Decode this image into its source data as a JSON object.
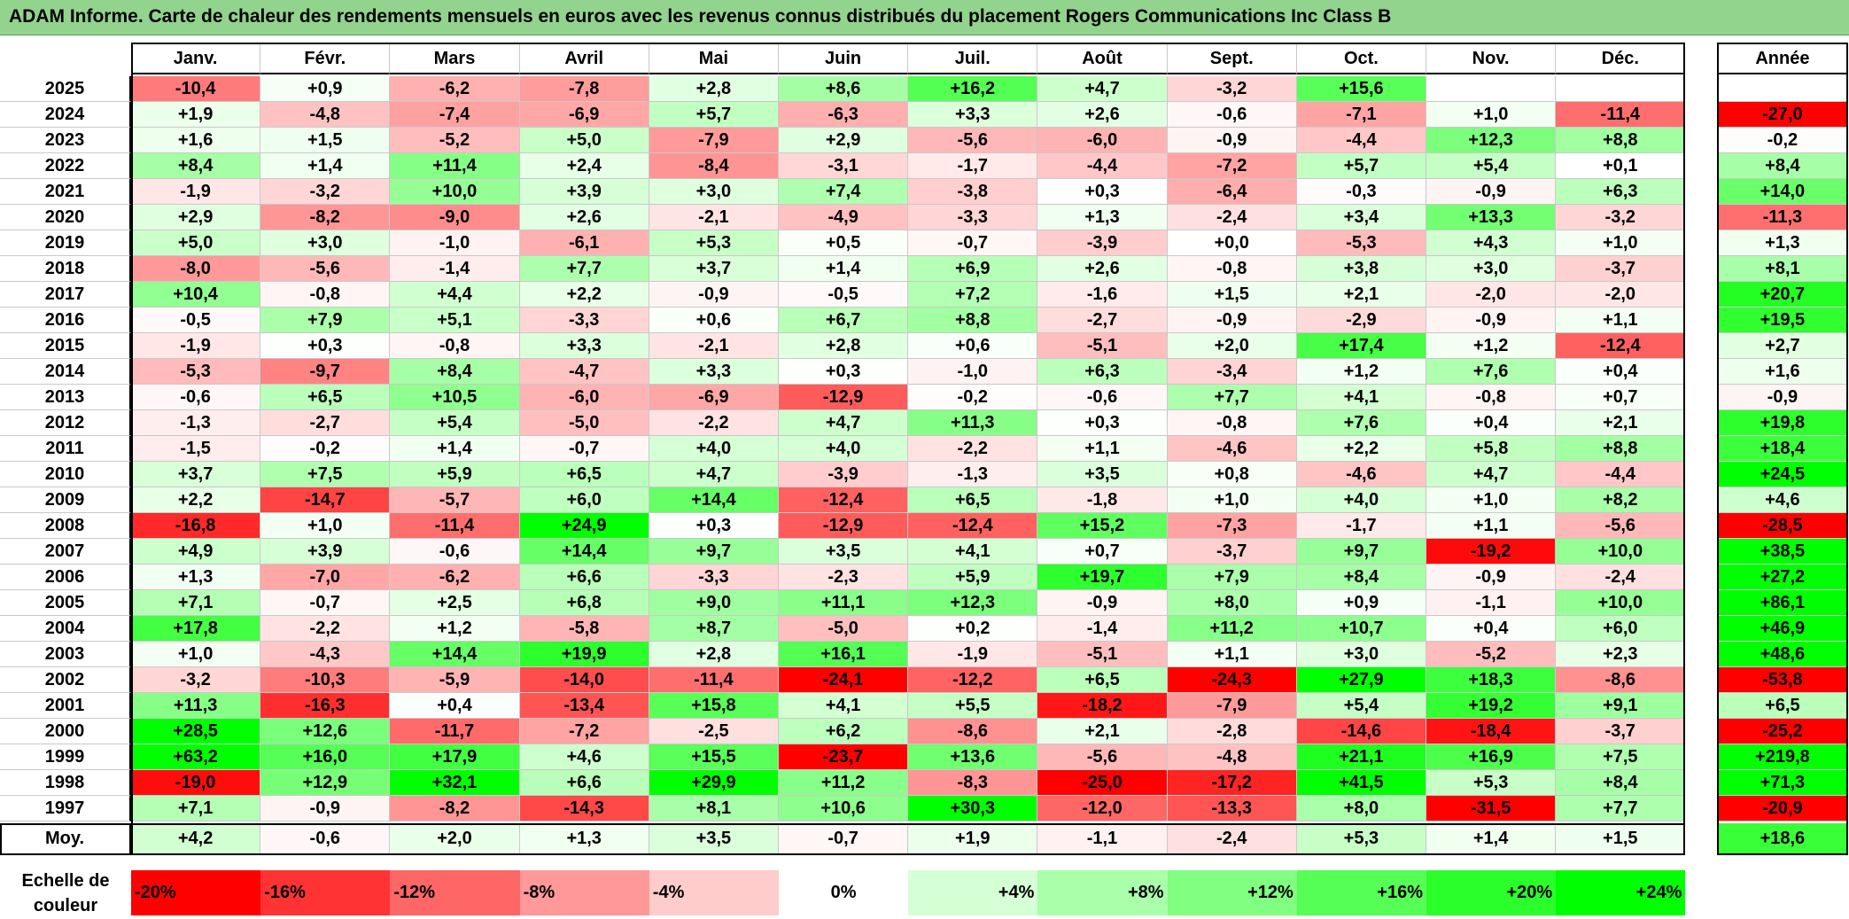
{
  "title": "ADAM Informe. Carte de chaleur des rendements mensuels en euros avec les revenus connus distribués du placement Rogers Communications Inc Class B",
  "chart_data": {
    "type": "heatmap",
    "columns": [
      "Janv.",
      "Févr.",
      "Mars",
      "Avril",
      "Mai",
      "Juin",
      "Juil.",
      "Août",
      "Sept.",
      "Oct.",
      "Nov.",
      "Déc."
    ],
    "year_column": "Année",
    "rows": [
      {
        "year": "2025",
        "values": [
          "-10,4",
          "+0,9",
          "-6,2",
          "-7,8",
          "+2,8",
          "+8,6",
          "+16,2",
          "+4,7",
          "-3,2",
          "+15,6",
          "",
          ""
        ],
        "annual": ""
      },
      {
        "year": "2024",
        "values": [
          "+1,9",
          "-4,8",
          "-7,4",
          "-6,9",
          "+5,7",
          "-6,3",
          "+3,3",
          "+2,6",
          "-0,6",
          "-7,1",
          "+1,0",
          "-11,4"
        ],
        "annual": "-27,0"
      },
      {
        "year": "2023",
        "values": [
          "+1,6",
          "+1,5",
          "-5,2",
          "+5,0",
          "-7,9",
          "+2,9",
          "-5,6",
          "-6,0",
          "-0,9",
          "-4,4",
          "+12,3",
          "+8,8"
        ],
        "annual": "-0,2"
      },
      {
        "year": "2022",
        "values": [
          "+8,4",
          "+1,4",
          "+11,4",
          "+2,4",
          "-8,4",
          "-3,1",
          "-1,7",
          "-4,4",
          "-7,2",
          "+5,7",
          "+5,4",
          "+0,1"
        ],
        "annual": "+8,4"
      },
      {
        "year": "2021",
        "values": [
          "-1,9",
          "-3,2",
          "+10,0",
          "+3,9",
          "+3,0",
          "+7,4",
          "-3,8",
          "+0,3",
          "-6,4",
          "-0,3",
          "-0,9",
          "+6,3"
        ],
        "annual": "+14,0"
      },
      {
        "year": "2020",
        "values": [
          "+2,9",
          "-8,2",
          "-9,0",
          "+2,6",
          "-2,1",
          "-4,9",
          "-3,3",
          "+1,3",
          "-2,4",
          "+3,4",
          "+13,3",
          "-3,2"
        ],
        "annual": "-11,3"
      },
      {
        "year": "2019",
        "values": [
          "+5,0",
          "+3,0",
          "-1,0",
          "-6,1",
          "+5,3",
          "+0,5",
          "-0,7",
          "-3,9",
          "+0,0",
          "-5,3",
          "+4,3",
          "+1,0"
        ],
        "annual": "+1,3"
      },
      {
        "year": "2018",
        "values": [
          "-8,0",
          "-5,6",
          "-1,4",
          "+7,7",
          "+3,7",
          "+1,4",
          "+6,9",
          "+2,6",
          "-0,8",
          "+3,8",
          "+3,0",
          "-3,7"
        ],
        "annual": "+8,1"
      },
      {
        "year": "2017",
        "values": [
          "+10,4",
          "-0,8",
          "+4,4",
          "+2,2",
          "-0,9",
          "-0,5",
          "+7,2",
          "-1,6",
          "+1,5",
          "+2,1",
          "-2,0",
          "-2,0"
        ],
        "annual": "+20,7"
      },
      {
        "year": "2016",
        "values": [
          "-0,5",
          "+7,9",
          "+5,1",
          "-3,3",
          "+0,6",
          "+6,7",
          "+8,8",
          "-2,7",
          "-0,9",
          "-2,9",
          "-0,9",
          "+1,1"
        ],
        "annual": "+19,5"
      },
      {
        "year": "2015",
        "values": [
          "-1,9",
          "+0,3",
          "-0,8",
          "+3,3",
          "-2,1",
          "+2,8",
          "+0,6",
          "-5,1",
          "+2,0",
          "+17,4",
          "+1,2",
          "-12,4"
        ],
        "annual": "+2,7"
      },
      {
        "year": "2014",
        "values": [
          "-5,3",
          "-9,7",
          "+8,4",
          "-4,7",
          "+3,3",
          "+0,3",
          "-1,0",
          "+6,3",
          "-3,4",
          "+1,2",
          "+7,6",
          "+0,4"
        ],
        "annual": "+1,6"
      },
      {
        "year": "2013",
        "values": [
          "-0,6",
          "+6,5",
          "+10,5",
          "-6,0",
          "-6,9",
          "-12,9",
          "-0,2",
          "-0,6",
          "+7,7",
          "+4,1",
          "-0,8",
          "+0,7"
        ],
        "annual": "-0,9"
      },
      {
        "year": "2012",
        "values": [
          "-1,3",
          "-2,7",
          "+5,4",
          "-5,0",
          "-2,2",
          "+4,7",
          "+11,3",
          "+0,3",
          "-0,8",
          "+7,6",
          "+0,4",
          "+2,1"
        ],
        "annual": "+19,8"
      },
      {
        "year": "2011",
        "values": [
          "-1,5",
          "-0,2",
          "+1,4",
          "-0,7",
          "+4,0",
          "+4,0",
          "-2,2",
          "+1,1",
          "-4,6",
          "+2,2",
          "+5,8",
          "+8,8"
        ],
        "annual": "+18,4"
      },
      {
        "year": "2010",
        "values": [
          "+3,7",
          "+7,5",
          "+5,9",
          "+6,5",
          "+4,7",
          "-3,9",
          "-1,3",
          "+3,5",
          "+0,8",
          "-4,6",
          "+4,7",
          "-4,4"
        ],
        "annual": "+24,5"
      },
      {
        "year": "2009",
        "values": [
          "+2,2",
          "-14,7",
          "-5,7",
          "+6,0",
          "+14,4",
          "-12,4",
          "+6,5",
          "-1,8",
          "+1,0",
          "+4,0",
          "+1,0",
          "+8,2"
        ],
        "annual": "+4,6"
      },
      {
        "year": "2008",
        "values": [
          "-16,8",
          "+1,0",
          "-11,4",
          "+24,9",
          "+0,3",
          "-12,9",
          "-12,4",
          "+15,2",
          "-7,3",
          "-1,7",
          "+1,1",
          "-5,6"
        ],
        "annual": "-28,5"
      },
      {
        "year": "2007",
        "values": [
          "+4,9",
          "+3,9",
          "-0,6",
          "+14,4",
          "+9,7",
          "+3,5",
          "+4,1",
          "+0,7",
          "-3,7",
          "+9,7",
          "-19,2",
          "+10,0"
        ],
        "annual": "+38,5"
      },
      {
        "year": "2006",
        "values": [
          "+1,3",
          "-7,0",
          "-6,2",
          "+6,6",
          "-3,3",
          "-2,3",
          "+5,9",
          "+19,7",
          "+7,9",
          "+8,4",
          "-0,9",
          "-2,4"
        ],
        "annual": "+27,2"
      },
      {
        "year": "2005",
        "values": [
          "+7,1",
          "-0,7",
          "+2,5",
          "+6,8",
          "+9,0",
          "+11,1",
          "+12,3",
          "-0,9",
          "+8,0",
          "+0,9",
          "-1,1",
          "+10,0"
        ],
        "annual": "+86,1"
      },
      {
        "year": "2004",
        "values": [
          "+17,8",
          "-2,2",
          "+1,2",
          "-5,8",
          "+8,7",
          "-5,0",
          "+0,2",
          "-1,4",
          "+11,2",
          "+10,7",
          "+0,4",
          "+6,0"
        ],
        "annual": "+46,9"
      },
      {
        "year": "2003",
        "values": [
          "+1,0",
          "-4,3",
          "+14,4",
          "+19,9",
          "+2,8",
          "+16,1",
          "-1,9",
          "-5,1",
          "+1,1",
          "+3,0",
          "-5,2",
          "+2,3"
        ],
        "annual": "+48,6"
      },
      {
        "year": "2002",
        "values": [
          "-3,2",
          "-10,3",
          "-5,9",
          "-14,0",
          "-11,4",
          "-24,1",
          "-12,2",
          "+6,5",
          "-24,3",
          "+27,9",
          "+18,3",
          "-8,6"
        ],
        "annual": "-53,8"
      },
      {
        "year": "2001",
        "values": [
          "+11,3",
          "-16,3",
          "+0,4",
          "-13,4",
          "+15,8",
          "+4,1",
          "+5,5",
          "-18,2",
          "-7,9",
          "+5,4",
          "+19,2",
          "+9,1"
        ],
        "annual": "+6,5"
      },
      {
        "year": "2000",
        "values": [
          "+28,5",
          "+12,6",
          "-11,7",
          "-7,2",
          "-2,5",
          "+6,2",
          "-8,6",
          "+2,1",
          "-2,8",
          "-14,6",
          "-18,4",
          "-3,7"
        ],
        "annual": "-25,2"
      },
      {
        "year": "1999",
        "values": [
          "+63,2",
          "+16,0",
          "+17,9",
          "+4,6",
          "+15,5",
          "-23,7",
          "+13,6",
          "-5,6",
          "-4,8",
          "+21,1",
          "+16,9",
          "+7,5"
        ],
        "annual": "+219,8"
      },
      {
        "year": "1998",
        "values": [
          "-19,0",
          "+12,9",
          "+32,1",
          "+6,6",
          "+29,9",
          "+11,2",
          "-8,3",
          "-25,0",
          "-17,2",
          "+41,5",
          "+5,3",
          "+8,4"
        ],
        "annual": "+71,3"
      },
      {
        "year": "1997",
        "values": [
          "+7,1",
          "-0,9",
          "-8,2",
          "-14,3",
          "+8,1",
          "+10,6",
          "+30,3",
          "-12,0",
          "-13,3",
          "+8,0",
          "-31,5",
          "+7,7"
        ],
        "annual": "-20,9"
      }
    ],
    "average": {
      "label": "Moy.",
      "values": [
        "+4,2",
        "-0,6",
        "+2,0",
        "+1,3",
        "+3,5",
        "-0,7",
        "+1,9",
        "-1,1",
        "-2,4",
        "+5,3",
        "+1,4",
        "+1,5"
      ],
      "annual": "+18,6"
    },
    "scale": {
      "label_line1": "Echelle de",
      "label_line2": "couleur",
      "stops": [
        {
          "label": "-20%",
          "value": -20,
          "align": "left"
        },
        {
          "label": "-16%",
          "value": -16,
          "align": "left"
        },
        {
          "label": "-12%",
          "value": -12,
          "align": "left"
        },
        {
          "label": "-8%",
          "value": -8,
          "align": "left"
        },
        {
          "label": "-4%",
          "value": -4,
          "align": "left"
        },
        {
          "label": "0%",
          "value": 0,
          "align": "center"
        },
        {
          "label": "+4%",
          "value": 4,
          "align": "right"
        },
        {
          "label": "+8%",
          "value": 8,
          "align": "right"
        },
        {
          "label": "+12%",
          "value": 12,
          "align": "right"
        },
        {
          "label": "+16%",
          "value": 16,
          "align": "right"
        },
        {
          "label": "+20%",
          "value": 20,
          "align": "right"
        },
        {
          "label": "+24%",
          "value": 24,
          "align": "right"
        }
      ]
    },
    "colors": {
      "negative_max": "#ff0000",
      "neutral": "#ffffff",
      "positive_max": "#00ff00",
      "title_bar": "#92d38d"
    },
    "color_range": [
      -20,
      24
    ]
  }
}
